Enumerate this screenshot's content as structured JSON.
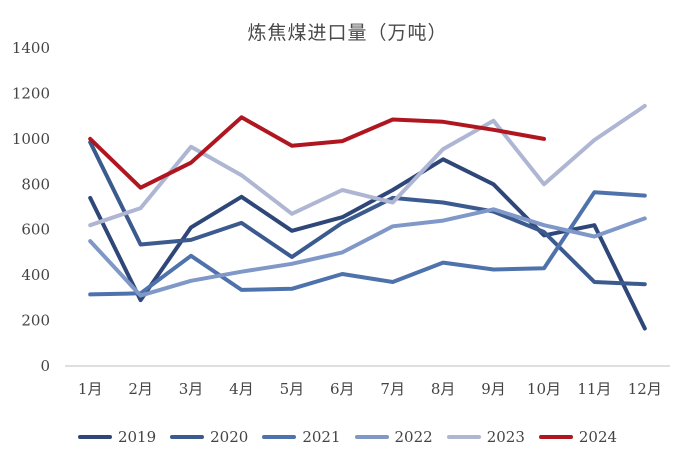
{
  "chart_data": {
    "type": "line",
    "title": "炼焦煤进口量（万吨）",
    "categories": [
      "1月",
      "2月",
      "3月",
      "4月",
      "5月",
      "6月",
      "7月",
      "8月",
      "9月",
      "10月",
      "11月",
      "12月"
    ],
    "ylim": [
      0,
      1400
    ],
    "yticks": [
      0,
      200,
      400,
      600,
      800,
      1000,
      1200,
      1400
    ],
    "grid": false,
    "legend_position": "bottom",
    "series": [
      {
        "name": "2019",
        "color": "#2e4678",
        "values": [
          740,
          290,
          610,
          745,
          595,
          655,
          775,
          910,
          800,
          575,
          620,
          165
        ]
      },
      {
        "name": "2020",
        "color": "#3b5a8e",
        "values": [
          985,
          535,
          555,
          630,
          480,
          630,
          740,
          720,
          680,
          590,
          370,
          360
        ]
      },
      {
        "name": "2021",
        "color": "#4e72ac",
        "values": [
          315,
          320,
          485,
          335,
          340,
          405,
          370,
          455,
          425,
          430,
          765,
          750
        ]
      },
      {
        "name": "2022",
        "color": "#7f98c8",
        "values": [
          550,
          310,
          375,
          415,
          450,
          500,
          615,
          640,
          690,
          620,
          570,
          650
        ]
      },
      {
        "name": "2023",
        "color": "#aeb6d4",
        "values": [
          620,
          695,
          965,
          840,
          670,
          775,
          720,
          955,
          1080,
          800,
          995,
          1145
        ]
      },
      {
        "name": "2024",
        "color": "#b0161f",
        "values": [
          1000,
          785,
          895,
          1095,
          970,
          990,
          1085,
          1075,
          1040,
          1000,
          null,
          null
        ]
      }
    ]
  }
}
